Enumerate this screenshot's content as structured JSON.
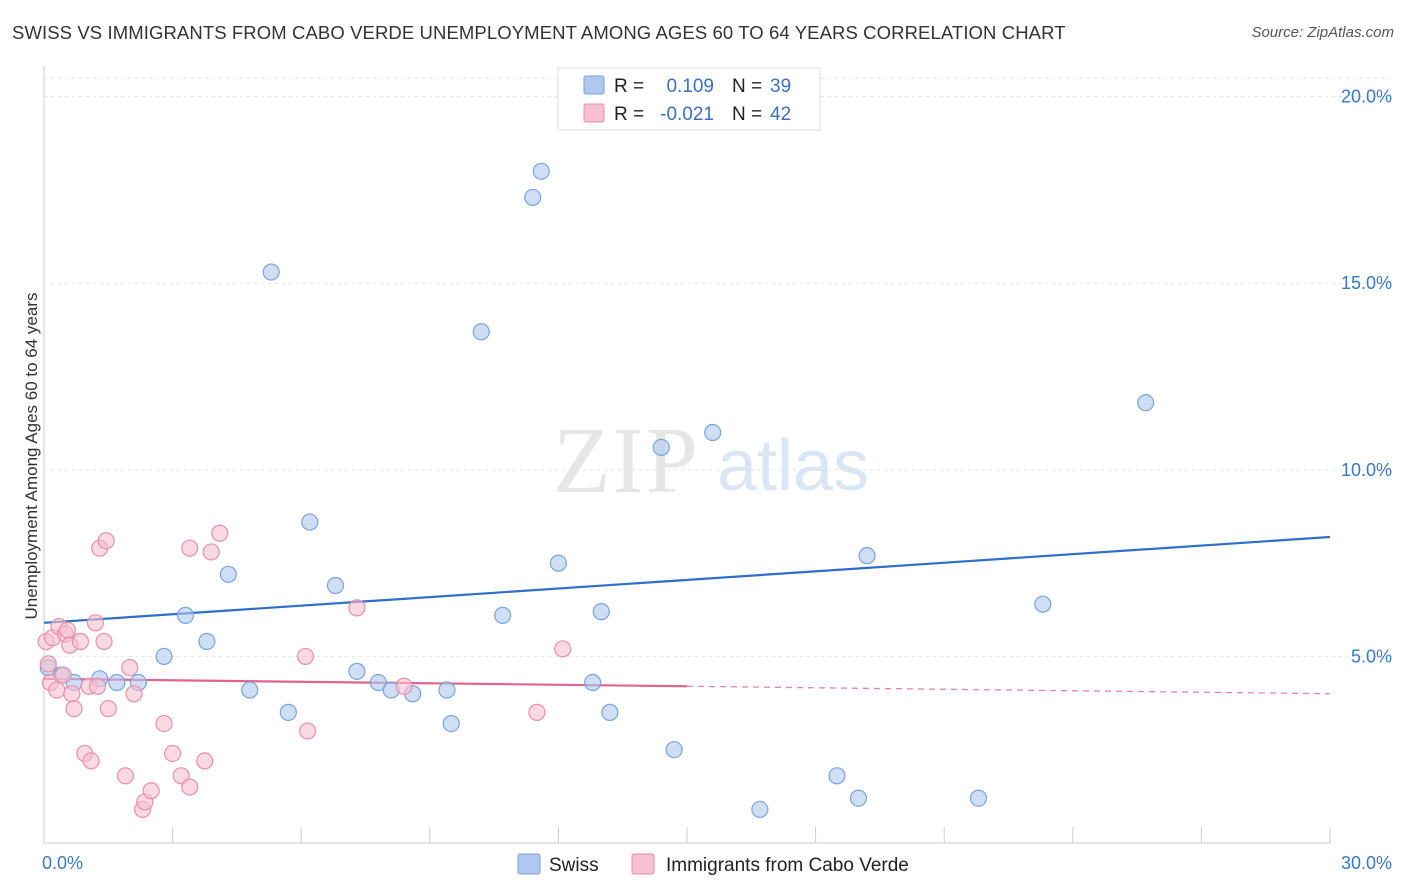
{
  "title": "SWISS VS IMMIGRANTS FROM CABO VERDE UNEMPLOYMENT AMONG AGES 60 TO 64 YEARS CORRELATION CHART",
  "source": "Source: ZipAtlas.com",
  "watermark": {
    "zip": "ZIP",
    "atlas": "atlas"
  },
  "legend_top": [
    {
      "r_label": "R =",
      "r_value": "0.109",
      "n_label": "N =",
      "n_value": "39",
      "color": "#aec8ef",
      "stroke": "#7aa3dd"
    },
    {
      "r_label": "R =",
      "r_value": "-0.021",
      "n_label": "N =",
      "n_value": "42",
      "color": "#f7bfd0",
      "stroke": "#e98fab"
    }
  ],
  "chart_data": {
    "type": "scatter",
    "title": "SWISS VS IMMIGRANTS FROM CABO VERDE UNEMPLOYMENT AMONG AGES 60 TO 64 YEARS CORRELATION CHART",
    "xlabel": "",
    "ylabel": "Unemployment Among Ages 60 to 64 years",
    "xlim": [
      0,
      30
    ],
    "ylim": [
      0,
      20.5
    ],
    "x_tick_labels": [
      "0.0%",
      "30.0%"
    ],
    "y_ticks": [
      5,
      10,
      15,
      20
    ],
    "y_tick_labels": [
      "5.0%",
      "10.0%",
      "15.0%",
      "20.0%"
    ],
    "grid": true,
    "legend_position": "bottom",
    "series": [
      {
        "name": "Swiss",
        "color": "#aec8ef",
        "stroke": "#7aa3dd",
        "line_color": "#2e6fc9",
        "trend": {
          "x0": 0,
          "y0": 5.9,
          "x1": 30,
          "y1": 8.2
        },
        "points": [
          {
            "x": 0.1,
            "y": 4.7
          },
          {
            "x": 0.4,
            "y": 4.5
          },
          {
            "x": 0.7,
            "y": 4.3
          },
          {
            "x": 1.3,
            "y": 4.4
          },
          {
            "x": 1.7,
            "y": 4.3
          },
          {
            "x": 2.2,
            "y": 4.3
          },
          {
            "x": 2.8,
            "y": 5.0
          },
          {
            "x": 3.3,
            "y": 6.1
          },
          {
            "x": 3.8,
            "y": 5.4
          },
          {
            "x": 4.3,
            "y": 7.2
          },
          {
            "x": 4.8,
            "y": 4.1
          },
          {
            "x": 5.3,
            "y": 15.3
          },
          {
            "x": 5.7,
            "y": 3.5
          },
          {
            "x": 6.2,
            "y": 8.6
          },
          {
            "x": 6.8,
            "y": 6.9
          },
          {
            "x": 7.3,
            "y": 4.6
          },
          {
            "x": 7.8,
            "y": 4.3
          },
          {
            "x": 8.1,
            "y": 4.1
          },
          {
            "x": 8.6,
            "y": 4.0
          },
          {
            "x": 9.4,
            "y": 4.1
          },
          {
            "x": 9.5,
            "y": 3.2
          },
          {
            "x": 10.2,
            "y": 13.7
          },
          {
            "x": 10.7,
            "y": 6.1
          },
          {
            "x": 11.4,
            "y": 17.3
          },
          {
            "x": 11.6,
            "y": 18.0
          },
          {
            "x": 12.0,
            "y": 7.5
          },
          {
            "x": 12.8,
            "y": 4.3
          },
          {
            "x": 13.0,
            "y": 6.2
          },
          {
            "x": 13.2,
            "y": 3.5
          },
          {
            "x": 14.4,
            "y": 10.6
          },
          {
            "x": 14.7,
            "y": 2.5
          },
          {
            "x": 15.6,
            "y": 11.0
          },
          {
            "x": 16.7,
            "y": 0.9
          },
          {
            "x": 18.5,
            "y": 1.8
          },
          {
            "x": 19.0,
            "y": 1.2
          },
          {
            "x": 19.2,
            "y": 7.7
          },
          {
            "x": 21.8,
            "y": 1.2
          },
          {
            "x": 23.3,
            "y": 6.4
          },
          {
            "x": 25.7,
            "y": 11.8
          }
        ]
      },
      {
        "name": "Immigrants from Cabo Verde",
        "color": "#f7bfd0",
        "stroke": "#e98fab",
        "line_color": "#e0648d",
        "trend": {
          "x0": 0,
          "y0": 4.4,
          "x1": 15,
          "y1": 4.2
        },
        "trend_dashed": {
          "x0": 15,
          "y0": 4.2,
          "x1": 30,
          "y1": 4.0
        },
        "points": [
          {
            "x": 0.05,
            "y": 5.4
          },
          {
            "x": 0.1,
            "y": 4.8
          },
          {
            "x": 0.15,
            "y": 4.3
          },
          {
            "x": 0.2,
            "y": 5.5
          },
          {
            "x": 0.3,
            "y": 4.1
          },
          {
            "x": 0.35,
            "y": 5.8
          },
          {
            "x": 0.45,
            "y": 4.5
          },
          {
            "x": 0.5,
            "y": 5.6
          },
          {
            "x": 0.55,
            "y": 5.7
          },
          {
            "x": 0.6,
            "y": 5.3
          },
          {
            "x": 0.65,
            "y": 4.0
          },
          {
            "x": 0.7,
            "y": 3.6
          },
          {
            "x": 0.85,
            "y": 5.4
          },
          {
            "x": 0.95,
            "y": 2.4
          },
          {
            "x": 1.05,
            "y": 4.2
          },
          {
            "x": 1.1,
            "y": 2.2
          },
          {
            "x": 1.2,
            "y": 5.9
          },
          {
            "x": 1.25,
            "y": 4.2
          },
          {
            "x": 1.3,
            "y": 7.9
          },
          {
            "x": 1.4,
            "y": 5.4
          },
          {
            "x": 1.45,
            "y": 8.1
          },
          {
            "x": 1.5,
            "y": 3.6
          },
          {
            "x": 1.9,
            "y": 1.8
          },
          {
            "x": 2.0,
            "y": 4.7
          },
          {
            "x": 2.1,
            "y": 4.0
          },
          {
            "x": 2.3,
            "y": 0.9
          },
          {
            "x": 2.35,
            "y": 1.1
          },
          {
            "x": 2.5,
            "y": 1.4
          },
          {
            "x": 2.8,
            "y": 3.2
          },
          {
            "x": 3.0,
            "y": 2.4
          },
          {
            "x": 3.2,
            "y": 1.8
          },
          {
            "x": 3.4,
            "y": 1.5
          },
          {
            "x": 3.4,
            "y": 7.9
          },
          {
            "x": 3.75,
            "y": 2.2
          },
          {
            "x": 3.9,
            "y": 7.8
          },
          {
            "x": 4.1,
            "y": 8.3
          },
          {
            "x": 6.1,
            "y": 5.0
          },
          {
            "x": 6.15,
            "y": 3.0
          },
          {
            "x": 7.3,
            "y": 6.3
          },
          {
            "x": 8.4,
            "y": 4.2
          },
          {
            "x": 11.5,
            "y": 3.5
          },
          {
            "x": 12.1,
            "y": 5.2
          }
        ]
      }
    ]
  }
}
